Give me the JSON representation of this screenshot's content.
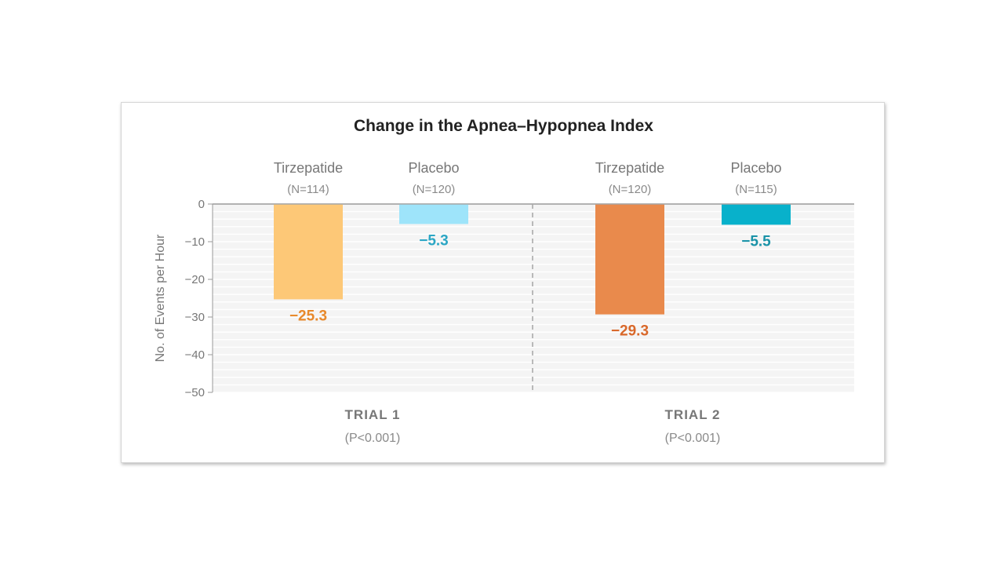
{
  "chart_data": {
    "type": "bar",
    "title": "Change in the Apnea–Hypopnea Index",
    "ylabel": "No. of Events per Hour",
    "ylim": [
      -50,
      0
    ],
    "yticks": [
      "0",
      "−10",
      "−20",
      "−30",
      "−40",
      "−50"
    ],
    "ytick_values": [
      0,
      -10,
      -20,
      -30,
      -40,
      -50
    ],
    "grid": true,
    "groups": [
      {
        "label": "TRIAL 1",
        "pvalue": "(P<0.001)",
        "bars": [
          {
            "name": "Tirzepatide",
            "n": "(N=114)",
            "value": -25.3,
            "value_label": "−25.3",
            "color": "#fdc877",
            "label_color": "#e8892b"
          },
          {
            "name": "Placebo",
            "n": "(N=120)",
            "value": -5.3,
            "value_label": "−5.3",
            "color": "#9ee4fa",
            "label_color": "#2ba6c4"
          }
        ]
      },
      {
        "label": "TRIAL 2",
        "pvalue": "(P<0.001)",
        "bars": [
          {
            "name": "Tirzepatide",
            "n": "(N=120)",
            "value": -29.3,
            "value_label": "−29.3",
            "color": "#e98a4c",
            "label_color": "#d9682a"
          },
          {
            "name": "Placebo",
            "n": "(N=115)",
            "value": -5.5,
            "value_label": "−5.5",
            "color": "#08b1cb",
            "label_color": "#1a93a8"
          }
        ]
      }
    ]
  }
}
